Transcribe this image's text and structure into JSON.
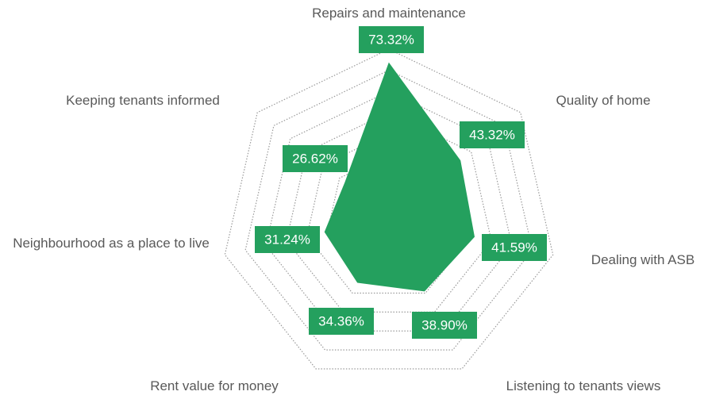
{
  "chart_data": {
    "type": "radar",
    "categories": [
      "Repairs and maintenance",
      "Quality of home",
      "Dealing with ASB",
      "Listening to tenants views",
      "Rent value for money",
      "Neighbourhood as a place to live",
      "Keeping tenants informed"
    ],
    "values": [
      73.32,
      43.32,
      41.59,
      38.9,
      34.36,
      31.24,
      26.62
    ],
    "value_labels": [
      "73.32%",
      "43.32%",
      "41.59%",
      "38.90%",
      "34.36%",
      "31.24%",
      "26.62%"
    ],
    "color": "#24a05e",
    "ylim": [
      0,
      80
    ],
    "yticks": [
      0,
      10,
      20,
      30,
      40,
      50,
      60,
      70,
      80
    ],
    "grid": true
  }
}
